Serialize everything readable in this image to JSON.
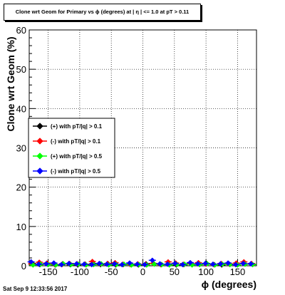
{
  "chart_data": {
    "type": "scatter",
    "title": "Clone wrt Geom for Primary vs ϕ (degrees) at | η | <= 1.0 at pT > 0.11",
    "xlabel": "ϕ (degrees)",
    "ylabel": "Clone wrt Geom (%)",
    "xlim": [
      -180,
      180
    ],
    "ylim": [
      0,
      60
    ],
    "x_ticks": [
      -150,
      -100,
      -50,
      0,
      50,
      100,
      150
    ],
    "y_ticks": [
      0,
      10,
      20,
      30,
      40,
      50,
      60
    ],
    "grid": true,
    "legend_position": "left-middle",
    "series": [
      {
        "name": "(+) with pT/|q| > 0.1",
        "color": "#000000",
        "x": [
          -175,
          -163,
          -151,
          -139,
          -127,
          -115,
          -103,
          -91,
          -79,
          -67,
          -55,
          -43,
          -31,
          -19,
          -7,
          5,
          17,
          29,
          41,
          53,
          65,
          77,
          89,
          101,
          113,
          125,
          137,
          149,
          161,
          173
        ],
        "y": [
          0.6,
          0.3,
          0.4,
          0.2,
          0.5,
          0.3,
          0.2,
          0.4,
          0.6,
          0.3,
          0.5,
          0.2,
          0.3,
          0.4,
          0.2,
          0.5,
          0.6,
          0.3,
          0.4,
          0.2,
          0.3,
          0.5,
          0.4,
          0.6,
          0.3,
          0.2,
          0.4,
          0.3,
          0.5,
          0.4
        ]
      },
      {
        "name": "(-) with pT/|q| > 0.1",
        "color": "#ff0000",
        "x": [
          -176,
          -164,
          -152,
          -140,
          -128,
          -116,
          -104,
          -92,
          -80,
          -68,
          -56,
          -44,
          -32,
          -20,
          -8,
          4,
          16,
          28,
          40,
          52,
          64,
          76,
          88,
          100,
          112,
          124,
          136,
          148,
          160,
          172
        ],
        "y": [
          0.5,
          0.9,
          0.7,
          0.4,
          0.3,
          0.6,
          0.5,
          0.4,
          1.1,
          0.5,
          0.6,
          0.8,
          0.4,
          0.3,
          0.5,
          0.4,
          0.6,
          0.3,
          1.0,
          0.7,
          0.4,
          0.5,
          0.8,
          0.4,
          0.3,
          0.6,
          0.5,
          0.7,
          1.0,
          0.6
        ]
      },
      {
        "name": "(+) with pT/|q| > 0.5",
        "color": "#00ff00",
        "x": [
          -174,
          -162,
          -150,
          -138,
          -126,
          -114,
          -102,
          -90,
          -78,
          -66,
          -54,
          -42,
          -30,
          -18,
          -6,
          6,
          18,
          30,
          42,
          54,
          66,
          78,
          90,
          102,
          114,
          126,
          138,
          150,
          162,
          174
        ],
        "y": [
          0.2,
          0.4,
          0.3,
          0.2,
          0.5,
          0.3,
          0.4,
          0.2,
          0.3,
          0.5,
          0.2,
          0.3,
          0.4,
          0.2,
          0.3,
          0.2,
          0.4,
          0.3,
          0.2,
          0.3,
          0.4,
          0.2,
          0.3,
          0.5,
          0.2,
          0.4,
          0.3,
          0.2,
          0.4,
          0.3
        ]
      },
      {
        "name": "(-) with pT/|q| > 0.5",
        "color": "#0000ff",
        "x": [
          -177,
          -165,
          -153,
          -141,
          -129,
          -117,
          -105,
          -93,
          -81,
          -69,
          -57,
          -45,
          -33,
          -21,
          -9,
          3,
          15,
          27,
          39,
          51,
          63,
          75,
          87,
          99,
          111,
          123,
          135,
          147,
          159,
          171
        ],
        "y": [
          1.0,
          0.4,
          0.5,
          0.7,
          0.3,
          0.6,
          0.5,
          0.4,
          0.3,
          0.6,
          0.4,
          0.5,
          0.3,
          0.7,
          0.4,
          0.3,
          1.4,
          0.5,
          0.4,
          0.6,
          0.3,
          0.8,
          0.5,
          0.6,
          0.4,
          0.5,
          0.7,
          0.3,
          0.6,
          0.5
        ]
      }
    ]
  },
  "footer": {
    "date": "Sat Sep  9 12:33:56 2017"
  }
}
